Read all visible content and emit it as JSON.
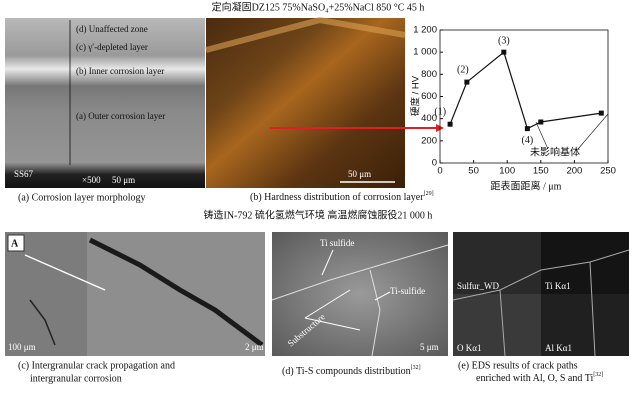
{
  "header": {
    "title_top": "定向凝固DZ125  75%NaSO₄+25%NaCl 850 °C 45 h",
    "title_middle": "铸造IN-792  硫化氢燃气环境  高温燃腐蚀服役21 000 h"
  },
  "panel_a": {
    "labels": [
      "(d) Unaffected zone",
      "(c) γ′-depleted layer",
      "(b) Inner corrosion layer",
      "(a) Outer corrosion layer"
    ],
    "sample": "SS67",
    "mag": "×500",
    "scale": "50 μm",
    "caption": "(a)  Corrosion layer morphology"
  },
  "panel_b": {
    "scale": "50 μm",
    "caption": "(b)  Hardness distribution of corrosion layer",
    "ref": "[29]"
  },
  "chart_data": {
    "type": "line",
    "x_label": "距表面距离 / μm",
    "y_label": "硬度 / HV",
    "x": [
      15,
      40,
      95,
      130,
      150,
      240
    ],
    "values": [
      350,
      730,
      1000,
      310,
      370,
      450
    ],
    "color": "#111111",
    "annotations": [
      "(1)",
      "(2)",
      "(3)",
      "(4)",
      "未影响基体"
    ],
    "xlim": [
      0,
      250
    ],
    "xticks": [
      0,
      50,
      100,
      150,
      200,
      250
    ],
    "ylim": [
      0,
      1200
    ],
    "yticks": [
      0,
      200,
      400,
      600,
      800,
      {
        "value": 1000,
        "label": "1 000"
      },
      {
        "value": 1200,
        "label": "1 200"
      }
    ]
  },
  "panel_c": {
    "tag": "A",
    "scale_inset": "100 μm",
    "scale_main": "2 μm",
    "caption_1": "(c)  Intergranular crack propagation and",
    "caption_2": "intergranular corrosion"
  },
  "panel_d": {
    "labels": [
      "Ti sulfide",
      "Ti-sulfide",
      "Substructure"
    ],
    "scale": "5 μm",
    "caption": "(d)  Ti-S compounds distribution",
    "ref": "[32]"
  },
  "panel_e": {
    "labels": [
      "Sulfur_WD",
      "Ti Kα1",
      "O Kα1",
      "Al Kα1"
    ],
    "caption_1": "(e)  EDS results of crack paths",
    "caption_2": "enriched with Al, O, S and Ti",
    "ref": "[32]"
  }
}
